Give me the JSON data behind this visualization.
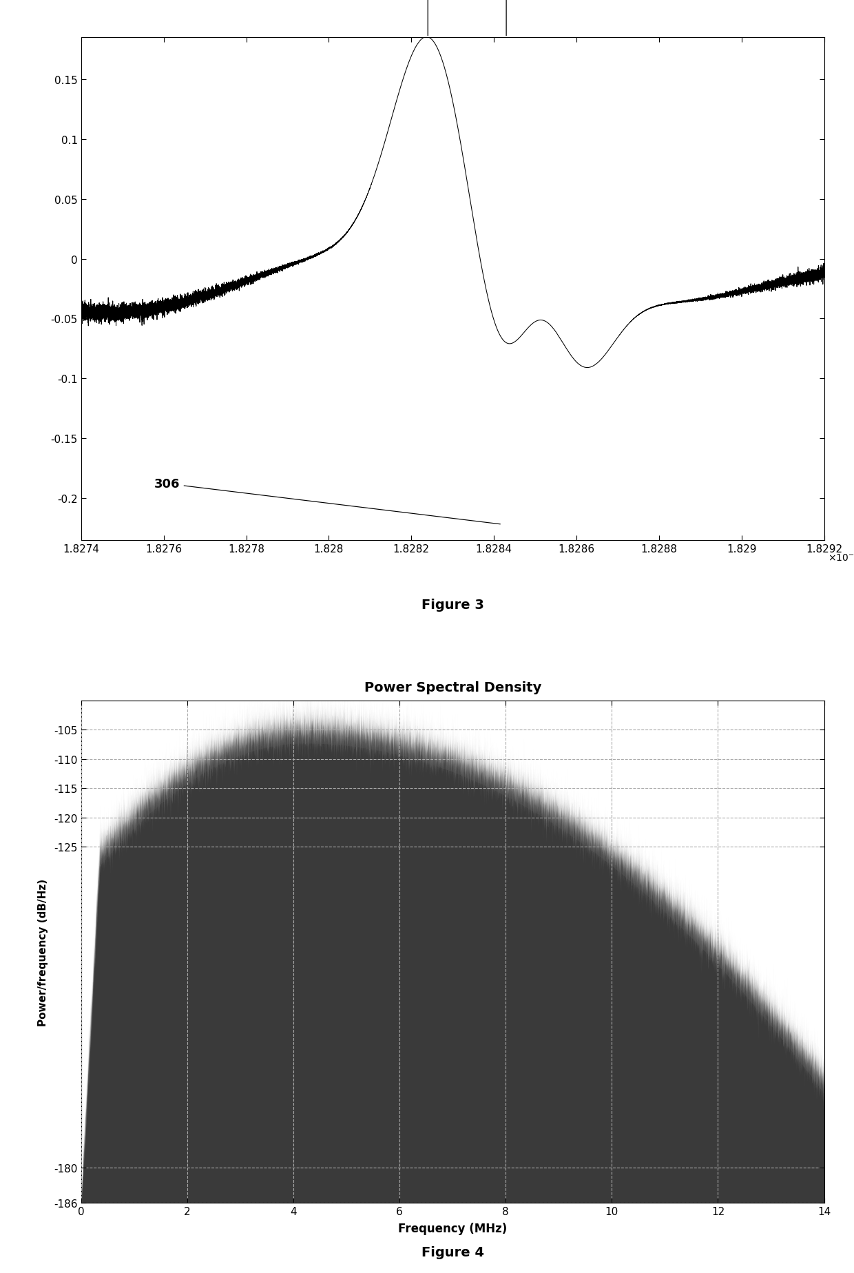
{
  "fig3": {
    "xlim": [
      0.0018274,
      0.0018292
    ],
    "ylim": [
      -0.235,
      0.185
    ],
    "xticks": [
      0.0018274,
      0.0018276,
      0.0018278,
      0.001828,
      0.0018282,
      0.0018284,
      0.0018286,
      0.0018288,
      0.001829,
      0.0018292
    ],
    "xtick_labels": [
      "1.8274",
      "1.8276",
      "1.8278",
      "1.828",
      "1.8282",
      "1.8284",
      "1.8286",
      "1.8288",
      "1.829",
      "1.8292"
    ],
    "yticks": [
      -0.2,
      -0.15,
      -0.1,
      -0.05,
      0,
      0.05,
      0.1,
      0.15
    ],
    "c1": 0.00182824,
    "c2": 0.00182843,
    "sig_sharp": 8e-08,
    "sig_mid": 2e-07,
    "sig_wide": 4e-07,
    "sig_noise_region": 1.5e-06,
    "figure_label": "Figure 3",
    "line_color": "#000000"
  },
  "fig4": {
    "title": "Power Spectral Density",
    "xlabel": "Frequency (MHz)",
    "ylabel": "Power/frequency (dB/Hz)",
    "xlim": [
      0,
      14
    ],
    "ylim": [
      -186,
      -100
    ],
    "xticks": [
      0,
      2,
      4,
      6,
      8,
      10,
      12,
      14
    ],
    "yticks": [
      -186,
      -180,
      -125,
      -120,
      -115,
      -110,
      -105
    ],
    "ytick_labels": [
      "-186",
      "-180",
      "-125",
      "-120",
      "-115",
      "-110",
      "-105"
    ],
    "figure_label": "Figure 4",
    "fill_color": "#3a3a3a",
    "grid_color": "#aaaaaa",
    "peak_freq": 4.2,
    "peak_val": -105.3
  }
}
